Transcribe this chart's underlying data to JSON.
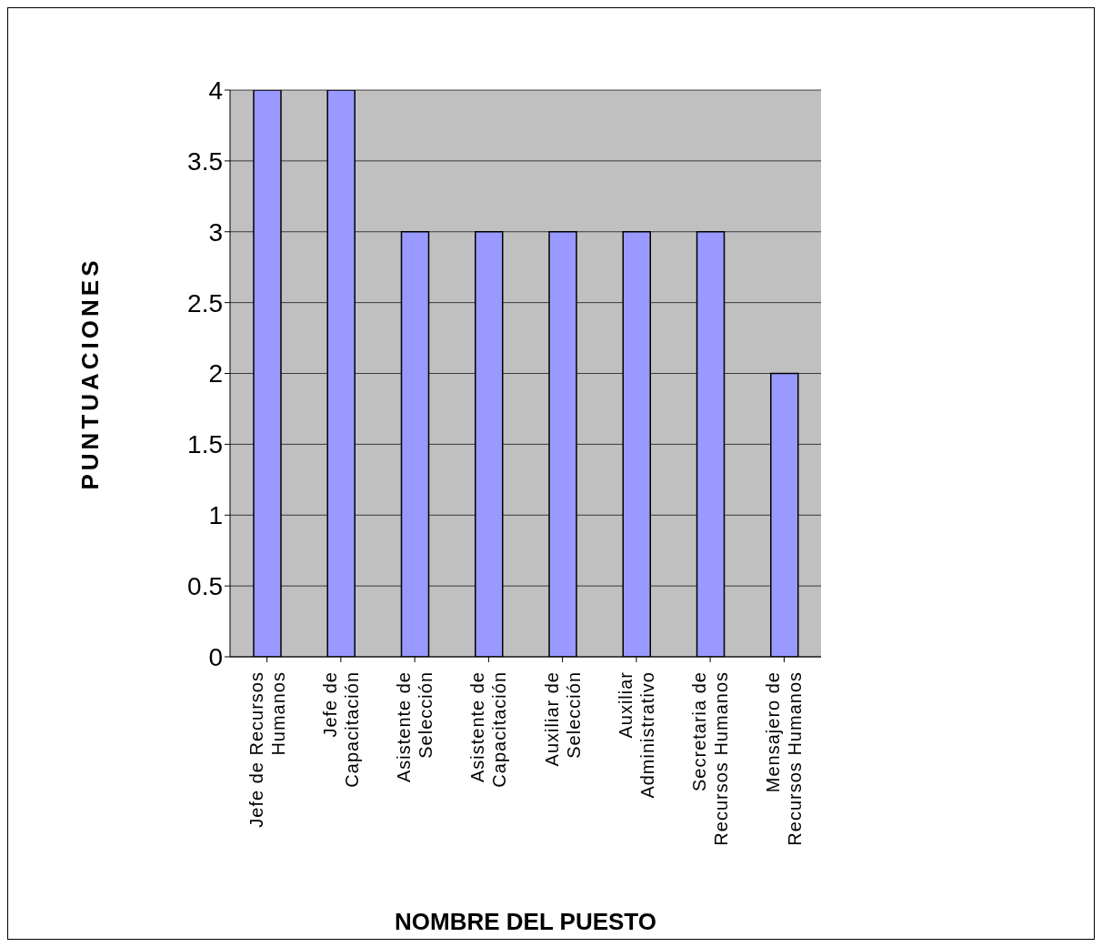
{
  "chart_data": {
    "type": "bar",
    "xlabel": "NOMBRE DEL PUESTO",
    "ylabel": "PUNTUACIONES",
    "categories": [
      "Jefe de Recursos Humanos",
      "Jefe de Capacitación",
      "Asistente de Selección",
      "Asistente de Capacitación",
      "Auxiliar de Selección",
      "Auxiliar Administrativo",
      "Secretaria de Recursos Humanos",
      "Mensajero de Recursos Humanos"
    ],
    "values": [
      4,
      4,
      3,
      3,
      3,
      3,
      3,
      2
    ],
    "color": "#9999ff",
    "ylim": [
      0,
      4
    ],
    "yticks": [
      0,
      0.5,
      1,
      1.5,
      2,
      2.5,
      3,
      3.5,
      4
    ],
    "grid": "y"
  }
}
